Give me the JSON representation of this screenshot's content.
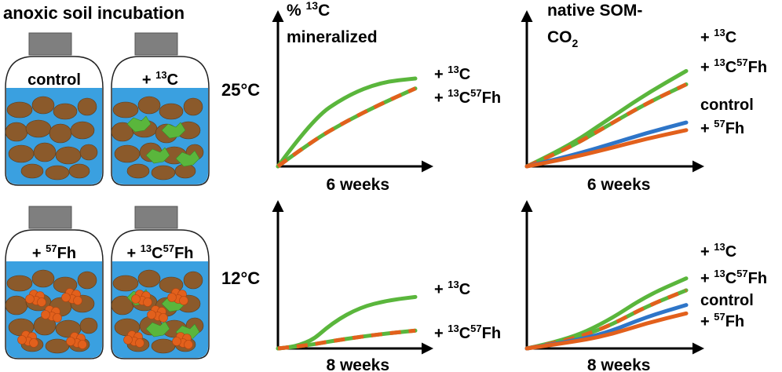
{
  "title": "anoxic soil incubation",
  "bottles": [
    {
      "label": "control",
      "label_base": "control",
      "label_sup": "",
      "label_tail": ""
    },
    {
      "label": "+ 13C",
      "label_base": "+ ",
      "label_sup": "13",
      "label_tail": "C"
    },
    {
      "label": "+ 57Fh",
      "label_base": "+ ",
      "label_sup": "57",
      "label_tail": "Fh"
    },
    {
      "label": "+ 13C57Fh",
      "label_base": "+ ",
      "label_sup": "13",
      "label_tail": "C",
      "label_sup2": "57",
      "label_tail2": "Fh"
    }
  ],
  "columns": {
    "left": {
      "title_line1_pre": "% ",
      "title_sup": "13",
      "title_line1_post": "C",
      "title_line2": "mineralized"
    },
    "right": {
      "title_line1": "native SOM-",
      "title_line2_base": "CO",
      "title_line2_sub": "2"
    }
  },
  "rows": {
    "top": {
      "temperature": "25°C",
      "xlabel": "6 weeks"
    },
    "bottom": {
      "temperature": "12°C",
      "xlabel": "8 weeks"
    }
  },
  "series_labels": {
    "c13": {
      "pre": "+ ",
      "sup": "13",
      "post": "C"
    },
    "c13fh": {
      "pre": "+ ",
      "sup": "13",
      "post": "C",
      "sup2": "57",
      "post2": "Fh"
    },
    "control": "control",
    "fh": {
      "pre": "+ ",
      "sup": "57",
      "post": "Fh"
    }
  },
  "colors": {
    "water": "#3aa0e0",
    "soil": "#8b5a2b",
    "cap": "#7f7f7f",
    "green": "#5ab63c",
    "orange": "#e2601c",
    "blue": "#2e75c8",
    "axis": "#000000"
  },
  "chart_data": [
    {
      "type": "line",
      "panel": "25C-13C-mineralized",
      "x": [
        0,
        0.25,
        0.5,
        0.75,
        1.0
      ],
      "series": [
        {
          "name": "+ 13C",
          "values": [
            0,
            0.52,
            0.78,
            0.93,
            0.97
          ]
        },
        {
          "name": "+ 13C57Fh",
          "values": [
            0,
            0.28,
            0.5,
            0.69,
            0.86
          ]
        }
      ]
    },
    {
      "type": "line",
      "panel": "25C-native-SOM-CO2",
      "x": [
        0,
        0.25,
        0.5,
        0.75,
        1.0
      ],
      "series": [
        {
          "name": "+ 13C",
          "values": [
            0,
            0.2,
            0.48,
            0.76,
            1.0
          ]
        },
        {
          "name": "+ 13C57Fh",
          "values": [
            0,
            0.18,
            0.42,
            0.66,
            0.86
          ]
        },
        {
          "name": "control",
          "values": [
            0,
            0.1,
            0.22,
            0.35,
            0.46
          ]
        },
        {
          "name": "+ 57Fh",
          "values": [
            0,
            0.08,
            0.18,
            0.29,
            0.38
          ]
        }
      ]
    },
    {
      "type": "line",
      "panel": "12C-13C-mineralized",
      "x": [
        0,
        0.2,
        0.4,
        0.6,
        0.8,
        1.0
      ],
      "series": [
        {
          "name": "+ 13C",
          "values": [
            0,
            0.03,
            0.38,
            0.6,
            0.7,
            0.75
          ]
        },
        {
          "name": "+ 13C57Fh",
          "values": [
            0,
            0.04,
            0.11,
            0.17,
            0.22,
            0.26
          ]
        }
      ]
    },
    {
      "type": "line",
      "panel": "12C-native-SOM-CO2",
      "x": [
        0,
        0.25,
        0.5,
        0.75,
        1.0
      ],
      "series": [
        {
          "name": "+ 13C",
          "values": [
            0,
            0.12,
            0.38,
            0.75,
            1.0
          ]
        },
        {
          "name": "+ 13C57Fh",
          "values": [
            0,
            0.11,
            0.3,
            0.6,
            0.83
          ]
        },
        {
          "name": "control",
          "values": [
            0,
            0.09,
            0.22,
            0.45,
            0.62
          ]
        },
        {
          "name": "+ 57Fh",
          "values": [
            0,
            0.08,
            0.18,
            0.36,
            0.5
          ]
        }
      ]
    }
  ]
}
